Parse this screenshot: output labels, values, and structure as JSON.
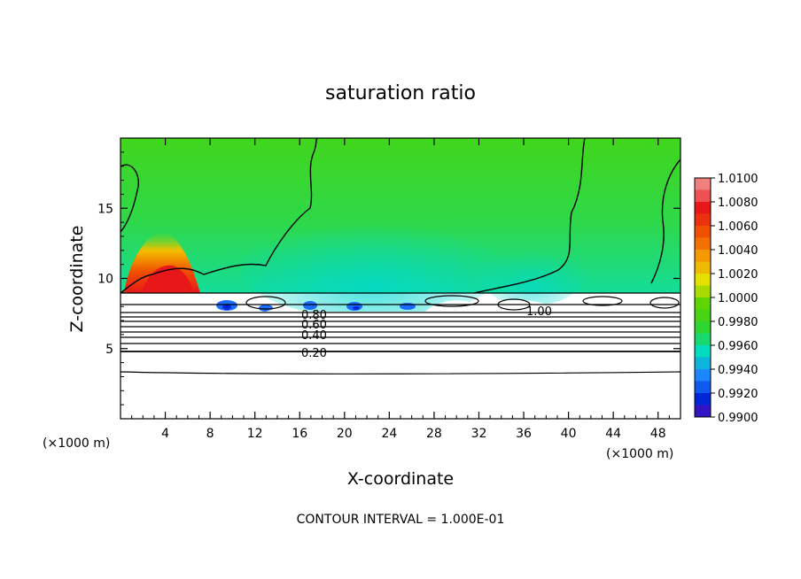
{
  "chart_data": {
    "type": "heatmap",
    "title": "saturation ratio",
    "xlabel": "X-coordinate",
    "ylabel": "Z-coordinate",
    "x_unit": "(×1000 m)",
    "y_unit": "(×1000 m)",
    "xlim": [
      0,
      50
    ],
    "ylim": [
      0,
      20
    ],
    "x_ticks": [
      "4",
      "8",
      "12",
      "16",
      "20",
      "24",
      "28",
      "32",
      "36",
      "40",
      "44",
      "48"
    ],
    "y_ticks": [
      "5",
      "10",
      "15"
    ],
    "colorbar": {
      "levels": [
        "1.0100",
        "1.0080",
        "1.0060",
        "1.0040",
        "1.0020",
        "1.0000",
        "0.9980",
        "0.9960",
        "0.9940",
        "0.9920",
        "0.9900"
      ],
      "range": [
        0.99,
        1.01
      ],
      "colors": [
        "#f08080",
        "#e81818",
        "#f05000",
        "#f49a00",
        "#e6e000",
        "#5ed400",
        "#2fd52f",
        "#00dcc0",
        "#1c86ff",
        "#0026d8",
        "#6e00a8"
      ]
    },
    "contour_labels": [
      "0.80",
      "0.60",
      "0.40",
      "0.20",
      "1.00"
    ],
    "contour_interval": "CONTOUR INTERVAL = 1.000E-01",
    "regions": [
      {
        "desc": "upper field near saturation",
        "value": 0.999
      },
      {
        "desc": "supersaturated plume",
        "x": [
          2,
          7
        ],
        "z": [
          9,
          12
        ],
        "value": 1.008
      },
      {
        "desc": "subsaturated pockets",
        "x": [
          8,
          30
        ],
        "z": [
          7.5,
          8.5
        ],
        "value": 0.993
      },
      {
        "desc": "lower layer far from saturation",
        "z": [
          0,
          8
        ],
        "value": 0.5
      }
    ]
  }
}
